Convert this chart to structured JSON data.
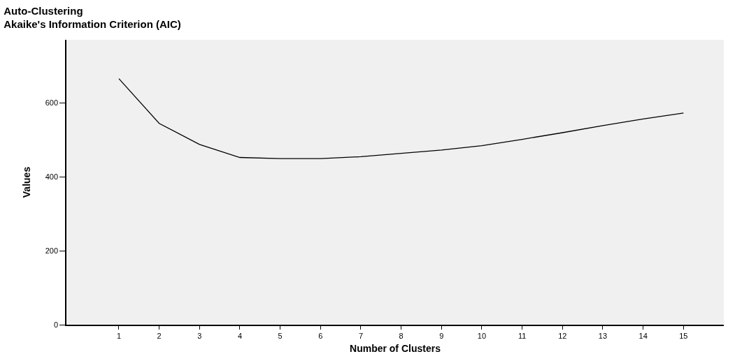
{
  "chart_data": {
    "type": "line",
    "title": "Auto-Clustering",
    "subtitle": "Akaike's Information Criterion (AIC)",
    "xlabel": "Number of Clusters",
    "ylabel": "Values",
    "x": [
      1,
      2,
      3,
      4,
      5,
      6,
      7,
      8,
      9,
      10,
      11,
      12,
      13,
      14,
      15
    ],
    "series": [
      {
        "color": "#000000",
        "values": [
          665,
          544,
          487,
          452,
          449,
          449,
          454,
          463,
          472,
          484,
          501,
          519,
          538,
          556,
          572
        ]
      }
    ],
    "xlim": [
      -0.3,
      16
    ],
    "xticks": [
      1,
      2,
      3,
      4,
      5,
      6,
      7,
      8,
      9,
      10,
      11,
      12,
      13,
      14,
      15
    ],
    "ylim": [
      0,
      770
    ],
    "yticks": [
      0,
      200,
      400,
      600
    ],
    "grid": false,
    "marker": "none",
    "line_style": "solid"
  }
}
